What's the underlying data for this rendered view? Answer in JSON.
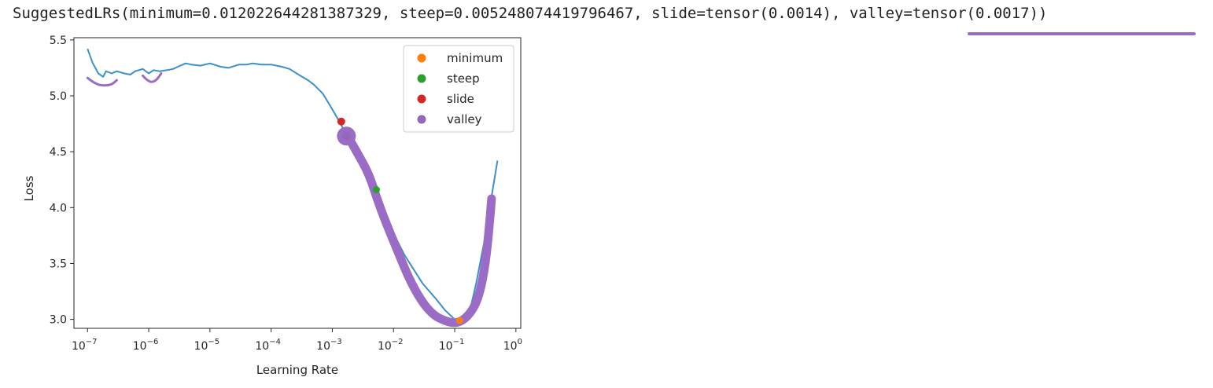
{
  "output_line": {
    "prefix": "SuggestedLRs(minimum=0.012022644281387329, steep=0.005248074419796467, slide=tensor(0.0014), ",
    "highlighted": "valley=tensor(0.0017)",
    "suffix": ")"
  },
  "colors": {
    "line": "#3b8fcb",
    "minimum": "#ff7f0e",
    "steep": "#2ca02c",
    "slide": "#d62728",
    "valley": "#9467bd",
    "annotation": "#9b6cc6"
  },
  "chart_data": {
    "type": "line",
    "title": "",
    "xlabel": "Learning Rate",
    "ylabel": "Loss",
    "xscale": "log",
    "xlim": [
      6e-08,
      1.2
    ],
    "ylim": [
      2.92,
      5.52
    ],
    "x_ticks": [
      {
        "value": 1e-07,
        "base": "10",
        "exp": "−7"
      },
      {
        "value": 1e-06,
        "base": "10",
        "exp": "−6"
      },
      {
        "value": 1e-05,
        "base": "10",
        "exp": "−5"
      },
      {
        "value": 0.0001,
        "base": "10",
        "exp": "−4"
      },
      {
        "value": 0.001,
        "base": "10",
        "exp": "−3"
      },
      {
        "value": 0.01,
        "base": "10",
        "exp": "−2"
      },
      {
        "value": 0.1,
        "base": "10",
        "exp": "−1"
      },
      {
        "value": 1,
        "base": "10",
        "exp": "0"
      }
    ],
    "y_ticks": [
      {
        "value": 3.0,
        "label": "3.0"
      },
      {
        "value": 3.5,
        "label": "3.5"
      },
      {
        "value": 4.0,
        "label": "4.0"
      },
      {
        "value": 4.5,
        "label": "4.5"
      },
      {
        "value": 5.0,
        "label": "5.0"
      },
      {
        "value": 5.5,
        "label": "5.5"
      }
    ],
    "series": [
      {
        "name": "loss",
        "x": [
          1e-07,
          1.2e-07,
          1.5e-07,
          1.8e-07,
          2e-07,
          2.5e-07,
          3e-07,
          4e-07,
          5e-07,
          6e-07,
          8e-07,
          1e-06,
          1.2e-06,
          1.5e-06,
          2e-06,
          2.5e-06,
          3e-06,
          4e-06,
          5e-06,
          7e-06,
          1e-05,
          1.5e-05,
          2e-05,
          3e-05,
          4e-05,
          5e-05,
          7e-05,
          0.0001,
          0.00015,
          0.0002,
          0.0003,
          0.0004,
          0.0005,
          0.0007,
          0.001,
          0.0014,
          0.002,
          0.003,
          0.005,
          0.007,
          0.01,
          0.015,
          0.02,
          0.03,
          0.05,
          0.07,
          0.1,
          0.13,
          0.17,
          0.22,
          0.3,
          0.4,
          0.5
        ],
        "y": [
          5.42,
          5.3,
          5.2,
          5.17,
          5.22,
          5.2,
          5.22,
          5.2,
          5.19,
          5.22,
          5.24,
          5.2,
          5.23,
          5.22,
          5.23,
          5.24,
          5.26,
          5.29,
          5.28,
          5.27,
          5.29,
          5.26,
          5.25,
          5.28,
          5.28,
          5.29,
          5.28,
          5.28,
          5.26,
          5.24,
          5.18,
          5.14,
          5.1,
          5.02,
          4.88,
          4.74,
          4.56,
          4.38,
          4.14,
          3.95,
          3.77,
          3.58,
          3.47,
          3.32,
          3.18,
          3.08,
          3.0,
          2.97,
          3.04,
          3.3,
          3.68,
          4.1,
          4.42
        ]
      }
    ],
    "markers": [
      {
        "name": "minimum",
        "x": 0.1202,
        "y": 2.99,
        "label": "minimum"
      },
      {
        "name": "steep",
        "x": 0.00525,
        "y": 4.16,
        "label": "steep"
      },
      {
        "name": "slide",
        "x": 0.0014,
        "y": 4.77,
        "label": "slide"
      },
      {
        "name": "valley",
        "x": 0.0017,
        "y": 4.64,
        "label": "valley"
      }
    ],
    "legend": [
      "minimum",
      "steep",
      "slide",
      "valley"
    ],
    "legend_position": "upper-right",
    "annotations": [
      {
        "name": "valley-highlight-stroke",
        "x": [
          0.0017,
          0.0025,
          0.004,
          0.006,
          0.01,
          0.02,
          0.04,
          0.08,
          0.12,
          0.18,
          0.25,
          0.32,
          0.37,
          0.4
        ],
        "y": [
          4.66,
          4.5,
          4.3,
          4.0,
          3.7,
          3.3,
          3.05,
          2.97,
          2.97,
          3.05,
          3.2,
          3.5,
          3.85,
          4.08
        ]
      },
      {
        "name": "dip-mark-1",
        "x": [
          1e-07,
          1.3e-07,
          1.8e-07,
          2.5e-07,
          3e-07
        ],
        "y": [
          5.16,
          5.11,
          5.09,
          5.1,
          5.14
        ]
      },
      {
        "name": "dip-mark-2",
        "x": [
          8e-07,
          1e-06,
          1.3e-06,
          1.6e-06
        ],
        "y": [
          5.18,
          5.12,
          5.13,
          5.2
        ]
      }
    ]
  }
}
